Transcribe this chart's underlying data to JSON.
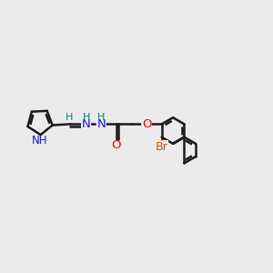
{
  "bg_color": "#ebebeb",
  "bond_color": "#1a1a1a",
  "bond_width": 1.8,
  "atom_colors": {
    "N": "#1414ff",
    "O": "#ff0000",
    "Br": "#cc5500",
    "H": "#008080"
  },
  "xlim": [
    -1.5,
    11.5
  ],
  "ylim": [
    -1.5,
    8.5
  ],
  "fig_w": 3.0,
  "fig_h": 3.0,
  "dpi": 100
}
